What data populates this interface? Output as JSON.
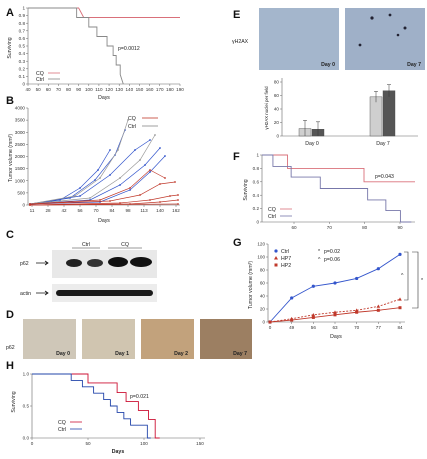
{
  "panels": {
    "A": {
      "letter": "A",
      "ylabel": "Surviving",
      "xlabel": "Days",
      "pvalue": "p=0.0012",
      "yticks": [
        "0",
        "0.1",
        "0.2",
        "0.3",
        "0.4",
        "0.5",
        "0.6",
        "0.7",
        "0.8",
        "0.9",
        "1"
      ],
      "xticks": [
        "40",
        "50",
        "60",
        "70",
        "80",
        "90",
        "100",
        "110",
        "120",
        "130",
        "140",
        "150",
        "160",
        "170",
        "180",
        "190"
      ],
      "legend": [
        {
          "name": "CQ",
          "color": "#d9707a"
        },
        {
          "name": "Ctrl",
          "color": "#888888"
        }
      ]
    },
    "B": {
      "letter": "B",
      "ylabel": "Tumor volume (mm³)",
      "xlabel": "Days",
      "yticks": [
        "0",
        "500",
        "1000",
        "1500",
        "2000",
        "2500",
        "3000",
        "3500",
        "4000"
      ],
      "xticks": [
        "11",
        "28",
        "42",
        "56",
        "70",
        "84",
        "98",
        "113",
        "140",
        "162"
      ],
      "legend": [
        {
          "name": "CQ",
          "color": "#c0392b"
        },
        {
          "name": "Ctrl",
          "color": "#888888"
        }
      ]
    },
    "C": {
      "letter": "C",
      "groups": [
        "Ctrl",
        "CQ"
      ],
      "rows": [
        "p62",
        "actin"
      ]
    },
    "D": {
      "letter": "D",
      "rowlabel": "p62",
      "images": [
        "Day 0",
        "Day 1",
        "Day 2",
        "Day 7"
      ]
    },
    "E": {
      "letter": "E",
      "imagelabel": "γH2AX",
      "images": [
        "Day 0",
        "Day 7"
      ],
      "ylabel": "γH2AX nuclei per field",
      "categories": [
        "Day 0",
        "Day 7"
      ],
      "yticks": [
        "0",
        "20",
        "40",
        "60",
        "80"
      ]
    },
    "F": {
      "letter": "F",
      "ylabel": "Surviving",
      "pvalue": "p=0.043",
      "yticks": [
        "0",
        "0.2",
        "0.4",
        "0.6",
        "0.8",
        "1"
      ],
      "xticks": [
        "60",
        "70",
        "80",
        "90"
      ],
      "legend": [
        {
          "name": "CQ",
          "color": "#d9707a"
        },
        {
          "name": "Ctrl",
          "color": "#7777aa"
        }
      ]
    },
    "G": {
      "letter": "G",
      "ylabel": "Tumor volume (mm³)",
      "xlabel": "Days",
      "yticks": [
        "0",
        "20",
        "40",
        "60",
        "80",
        "100",
        "120"
      ],
      "xticks": [
        "0",
        "49",
        "56",
        "63",
        "70",
        "77",
        "84"
      ],
      "legend": [
        {
          "name": "Ctrl",
          "color": "#3355cc"
        },
        {
          "name": "HP7",
          "color": "#c0392b"
        },
        {
          "name": "HP2",
          "color": "#c0392b"
        }
      ],
      "stats": [
        {
          "sym": "*",
          "text": "p=0.02"
        },
        {
          "sym": "^",
          "text": "p=0.06"
        }
      ],
      "brackets": [
        "^",
        "*"
      ]
    },
    "H": {
      "letter": "H",
      "ylabel": "Surviving",
      "xlabel": "Days",
      "pvalue": "p=0.021",
      "yticks": [
        "0.0",
        "0.5",
        "1.0"
      ],
      "xticks": [
        "0",
        "50",
        "100",
        "150"
      ],
      "legend": [
        {
          "name": "CQ",
          "color": "#cc1133"
        },
        {
          "name": "Ctrl",
          "color": "#2244aa"
        }
      ]
    }
  },
  "chart_data": [
    {
      "panel": "A",
      "type": "line",
      "step": true,
      "xlim": [
        40,
        190
      ],
      "ylim": [
        0,
        1
      ],
      "series": [
        {
          "name": "CQ",
          "x": [
            40,
            90,
            95,
            190
          ],
          "values": [
            1,
            1,
            0.875,
            0.875
          ]
        },
        {
          "name": "Ctrl",
          "x": [
            40,
            88,
            88,
            100,
            100,
            108,
            108,
            118,
            118,
            124,
            124,
            127,
            127,
            131,
            131,
            134
          ],
          "values": [
            1,
            1,
            0.875,
            0.875,
            0.75,
            0.75,
            0.625,
            0.625,
            0.5,
            0.5,
            0.375,
            0.375,
            0.25,
            0.25,
            0.125,
            0.0
          ]
        }
      ]
    },
    {
      "panel": "E",
      "type": "bar",
      "categories": [
        "Day 0",
        "Day 7"
      ],
      "ylim": [
        0,
        80
      ],
      "series": [
        {
          "values": [
            11,
            58
          ]
        },
        {
          "values": [
            10,
            67
          ]
        }
      ],
      "errors": [
        [
          12,
          8
        ],
        [
          11,
          9
        ]
      ]
    },
    {
      "panel": "F",
      "type": "line",
      "step": true,
      "xlim": [
        50,
        92
      ],
      "ylim": [
        0,
        1
      ],
      "series": [
        {
          "name": "CQ",
          "x": [
            50,
            57,
            57,
            78,
            78,
            92
          ],
          "values": [
            1,
            1,
            0.8,
            0.8,
            0.6,
            0.6
          ]
        },
        {
          "name": "Ctrl",
          "x": [
            50,
            53,
            53,
            58,
            58,
            66,
            66,
            79,
            79,
            84,
            84,
            88,
            88,
            91
          ],
          "values": [
            1,
            1,
            0.83,
            0.83,
            0.67,
            0.67,
            0.5,
            0.5,
            0.33,
            0.33,
            0.17,
            0.17,
            0.0,
            0.0
          ]
        }
      ]
    },
    {
      "panel": "G",
      "type": "line",
      "categories": [
        "0",
        "49",
        "56",
        "63",
        "70",
        "77",
        "84"
      ],
      "ylim": [
        0,
        120
      ],
      "series": [
        {
          "name": "Ctrl",
          "values": [
            0,
            37,
            55,
            60,
            67,
            82,
            104
          ]
        },
        {
          "name": "HP7",
          "values": [
            0,
            5,
            11,
            15,
            18,
            24,
            35
          ]
        },
        {
          "name": "HP2",
          "values": [
            0,
            3,
            7,
            11,
            15,
            18,
            22
          ]
        }
      ]
    },
    {
      "panel": "H",
      "type": "line",
      "step": true,
      "xlim": [
        0,
        150
      ],
      "ylim": [
        0,
        1
      ],
      "series": [
        {
          "name": "CQ",
          "x": [
            0,
            50,
            50,
            76,
            76,
            84,
            84,
            95,
            95,
            104,
            104,
            110,
            110,
            114
          ],
          "values": [
            1,
            1,
            0.86,
            0.86,
            0.71,
            0.71,
            0.57,
            0.57,
            0.43,
            0.43,
            0.29,
            0.29,
            0.0,
            0.0
          ]
        },
        {
          "name": "Ctrl",
          "x": [
            0,
            35,
            35,
            45,
            45,
            55,
            55,
            64,
            64,
            70,
            70,
            76,
            76,
            82,
            82,
            88,
            88,
            103,
            103,
            106
          ],
          "values": [
            1,
            1,
            0.9,
            0.9,
            0.8,
            0.8,
            0.7,
            0.7,
            0.6,
            0.6,
            0.5,
            0.5,
            0.4,
            0.4,
            0.3,
            0.3,
            0.2,
            0.2,
            0.0,
            0.0
          ]
        }
      ]
    }
  ]
}
